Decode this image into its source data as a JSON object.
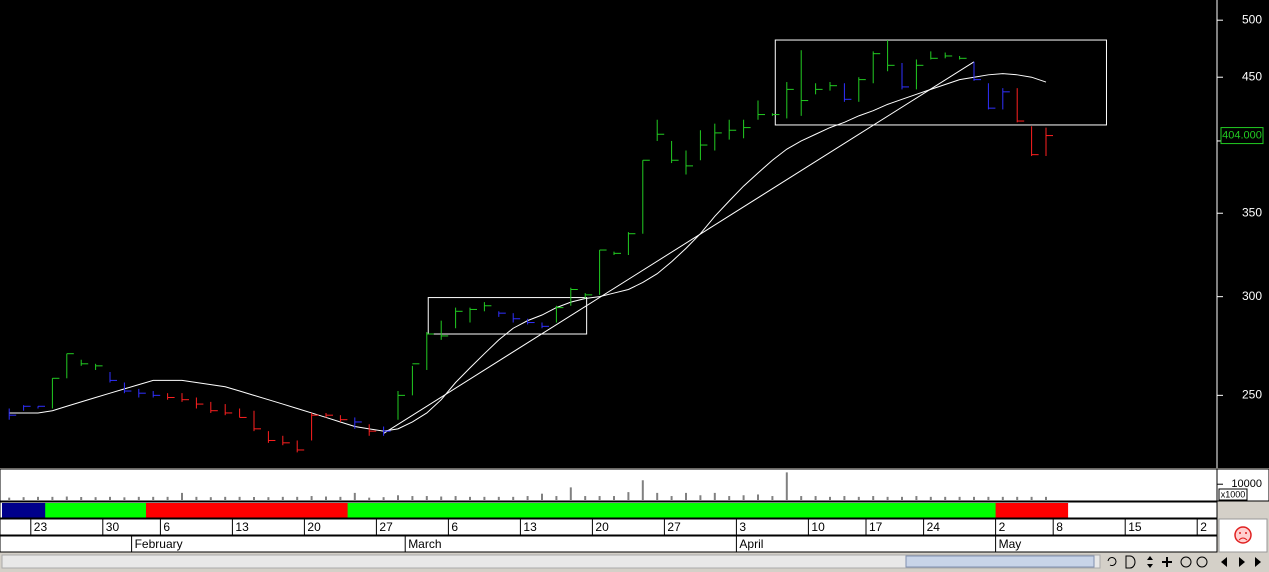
{
  "chart_data": {
    "type": "ohlc",
    "categories": [
      null,
      null,
      "23",
      null,
      null,
      null,
      null,
      "30",
      null,
      null,
      null,
      "6",
      null,
      null,
      null,
      null,
      "13",
      null,
      null,
      null,
      null,
      "20",
      null,
      null,
      null,
      null,
      "27",
      null,
      null,
      null,
      null,
      "6",
      null,
      null,
      null,
      null,
      "13",
      null,
      null,
      null,
      null,
      "20",
      null,
      null,
      null,
      null,
      "27",
      null,
      null,
      null,
      null,
      "3",
      null,
      null,
      null,
      null,
      "10",
      null,
      null,
      null,
      "17",
      null,
      null,
      null,
      "24",
      null,
      null,
      null,
      null,
      "2",
      null,
      null,
      null,
      "8",
      null,
      null,
      null,
      null,
      "15",
      null,
      null,
      null,
      null,
      "2"
    ],
    "months": [
      null,
      null,
      null,
      null,
      null,
      null,
      null,
      null,
      null,
      "February",
      null,
      null,
      null,
      null,
      null,
      null,
      null,
      null,
      null,
      null,
      null,
      null,
      null,
      null,
      null,
      null,
      null,
      null,
      "March",
      null,
      null,
      null,
      null,
      null,
      null,
      null,
      null,
      null,
      null,
      null,
      null,
      null,
      null,
      null,
      null,
      null,
      null,
      null,
      null,
      null,
      null,
      "April",
      null,
      null,
      null,
      null,
      null,
      null,
      null,
      null,
      null,
      null,
      null,
      null,
      null,
      null,
      null,
      null,
      null,
      "May",
      null,
      null,
      null,
      null,
      null,
      null,
      null,
      null,
      null,
      null,
      null,
      null,
      null,
      null
    ],
    "high": [
      244,
      245.5,
      245,
      258,
      270,
      267,
      265,
      261,
      256,
      253,
      252,
      251,
      251,
      249,
      247,
      246,
      244,
      243,
      234,
      232,
      230,
      242,
      242,
      241,
      240,
      237,
      236,
      252,
      264,
      281,
      287,
      294,
      294,
      297,
      292,
      291,
      288,
      286,
      295,
      305,
      302,
      327,
      326,
      338,
      386,
      416,
      400,
      393,
      408,
      413,
      416,
      416,
      431,
      421,
      446,
      473,
      445,
      446,
      445,
      450,
      472,
      482,
      462,
      465,
      472,
      471,
      468,
      463,
      445,
      441,
      441,
      411,
      410,
      null,
      null,
      null,
      null,
      null,
      null,
      null,
      null,
      null,
      null,
      null
    ],
    "low": [
      239,
      243,
      244,
      244,
      258,
      264,
      262,
      256,
      251,
      249,
      249,
      248,
      247,
      244,
      242,
      241,
      240,
      234,
      229,
      228,
      225,
      230,
      240,
      238,
      235,
      232,
      232,
      239,
      250,
      262,
      277,
      283,
      286,
      292,
      289,
      286,
      285,
      283,
      286,
      295,
      299,
      301,
      324,
      324,
      337,
      400,
      384,
      376,
      386,
      393,
      401,
      402,
      416,
      419,
      417,
      419,
      436,
      439,
      430,
      430,
      445,
      455,
      440,
      440,
      465,
      466,
      465,
      447,
      424,
      424,
      414,
      389,
      389,
      null,
      null,
      null,
      null,
      null,
      null,
      null,
      null,
      null,
      null,
      null
    ],
    "close": [
      241,
      245,
      245,
      258,
      270,
      265,
      264,
      257,
      252,
      251,
      250,
      249,
      248,
      246,
      243,
      242,
      240,
      235,
      230,
      229,
      226,
      241,
      241,
      239,
      238,
      234,
      234,
      250,
      265,
      280,
      279,
      292,
      293,
      295,
      291,
      288,
      286,
      284,
      294,
      304,
      301,
      327,
      325,
      337,
      386,
      405,
      386,
      382,
      397,
      406,
      408,
      410,
      420,
      420,
      440,
      431,
      440,
      443,
      432,
      448,
      470,
      460,
      442,
      460,
      466,
      468,
      466,
      448,
      425,
      438,
      415,
      390,
      404,
      null,
      null,
      null,
      null,
      null,
      null,
      null,
      null,
      null,
      null,
      null
    ],
    "bar_colors": [
      "#3030ff",
      "#3030ff",
      "#3030ff",
      "#22cc22",
      "#22cc22",
      "#22cc22",
      "#22cc22",
      "#3030ff",
      "#3030ff",
      "#3030ff",
      "#3030ff",
      "#ff2020",
      "#ff2020",
      "#ff2020",
      "#ff2020",
      "#ff2020",
      "#ff2020",
      "#ff2020",
      "#ff2020",
      "#ff2020",
      "#ff2020",
      "#ff2020",
      "#ff2020",
      "#ff2020",
      "#3030ff",
      "#ff2020",
      "#3030ff",
      "#22cc22",
      "#22cc22",
      "#22cc22",
      "#22cc22",
      "#22cc22",
      "#22cc22",
      "#22cc22",
      "#3030ff",
      "#3030ff",
      "#3030ff",
      "#3030ff",
      "#22cc22",
      "#22cc22",
      "#22cc22",
      "#22cc22",
      "#22cc22",
      "#22cc22",
      "#22cc22",
      "#22cc22",
      "#22cc22",
      "#22cc22",
      "#22cc22",
      "#22cc22",
      "#22cc22",
      "#22cc22",
      "#22cc22",
      "#22cc22",
      "#22cc22",
      "#22cc22",
      "#22cc22",
      "#22cc22",
      "#3030ff",
      "#22cc22",
      "#22cc22",
      "#22cc22",
      "#3030ff",
      "#22cc22",
      "#22cc22",
      "#22cc22",
      "#22cc22",
      "#3030ff",
      "#3030ff",
      "#3030ff",
      "#ff2020",
      "#ff2020",
      "#ff2020",
      null,
      null,
      null,
      null,
      null,
      null,
      null,
      null,
      null,
      null,
      null
    ],
    "moving_average": [
      242,
      242,
      242,
      243,
      245,
      247,
      249,
      251,
      253,
      255,
      257,
      257,
      257,
      256,
      255,
      254,
      252,
      250,
      248,
      246,
      244,
      242,
      240,
      238,
      236,
      235,
      234,
      235,
      238,
      242,
      248,
      256,
      263,
      270,
      277,
      283,
      287,
      290,
      294,
      297,
      299,
      300,
      302,
      304,
      308,
      313,
      320,
      328,
      337,
      348,
      358,
      368,
      377,
      386,
      394,
      400,
      405,
      410,
      414,
      419,
      423,
      428,
      432,
      436,
      440,
      444,
      448,
      450,
      452,
      453,
      452,
      450,
      446,
      null,
      null,
      null,
      null,
      null,
      null,
      null,
      null,
      null,
      null,
      null
    ],
    "line_color": "#ffffff",
    "trendline": {
      "x": [
        26,
        67
      ],
      "y": [
        233,
        463
      ]
    },
    "boxes": [
      {
        "x": [
          29.1,
          40.1
        ],
        "y": [
          280,
          299.5
        ]
      },
      {
        "x": [
          53.2,
          76.2
        ],
        "y": [
          412,
          482
        ]
      }
    ],
    "log_scale": true,
    "ylim": [
      219,
      519
    ],
    "yticks": [
      250,
      300,
      350,
      400,
      450,
      500
    ],
    "last_label": "404.000",
    "volume": [
      1500,
      1800,
      2000,
      2000,
      2200,
      1900,
      1800,
      2000,
      1700,
      2000,
      2000,
      2000,
      4500,
      2000,
      1800,
      2000,
      2000,
      1900,
      1800,
      2000,
      2000,
      2500,
      2200,
      2000,
      4500,
      1500,
      1800,
      3000,
      2500,
      2500,
      2200,
      2500,
      2000,
      2000,
      2000,
      2000,
      2500,
      4000,
      2500,
      8000,
      2500,
      2500,
      2500,
      5000,
      12500,
      4500,
      2500,
      4500,
      3000,
      4500,
      2500,
      3000,
      3500,
      2500,
      17500,
      2500,
      2500,
      2000,
      2500,
      2000,
      2500,
      2000,
      2000,
      2500,
      2000,
      2000,
      2000,
      2000,
      2000,
      2000,
      2000,
      2000,
      2000,
      null,
      null,
      null,
      null,
      null,
      null,
      null,
      null,
      null,
      null,
      null
    ],
    "volume_color": "#808080",
    "volume_ylim": [
      0,
      19000
    ],
    "volume_yticks": [
      10000
    ],
    "volume_unit": "x1000",
    "strip_colors": [
      "#00008b",
      "#00008b",
      "#00008b",
      "#00ff00",
      "#00ff00",
      "#00ff00",
      "#00ff00",
      "#00ff00",
      "#00ff00",
      "#00ff00",
      "#ff0000",
      "#ff0000",
      "#ff0000",
      "#ff0000",
      "#ff0000",
      "#ff0000",
      "#ff0000",
      "#ff0000",
      "#ff0000",
      "#ff0000",
      "#ff0000",
      "#ff0000",
      "#ff0000",
      "#ff0000",
      "#00ff00",
      "#00ff00",
      "#00ff00",
      "#00ff00",
      "#00ff00",
      "#00ff00",
      "#00ff00",
      "#00ff00",
      "#00ff00",
      "#00ff00",
      "#00ff00",
      "#00ff00",
      "#00ff00",
      "#00ff00",
      "#00ff00",
      "#00ff00",
      "#00ff00",
      "#00ff00",
      "#00ff00",
      "#00ff00",
      "#00ff00",
      "#00ff00",
      "#00ff00",
      "#00ff00",
      "#00ff00",
      "#00ff00",
      "#00ff00",
      "#00ff00",
      "#00ff00",
      "#00ff00",
      "#00ff00",
      "#00ff00",
      "#00ff00",
      "#00ff00",
      "#00ff00",
      "#00ff00",
      "#00ff00",
      "#00ff00",
      "#00ff00",
      "#00ff00",
      "#00ff00",
      "#00ff00",
      "#00ff00",
      "#00ff00",
      "#00ff00",
      "#ff0000",
      "#ff0000",
      "#ff0000",
      "#ff0000",
      "#ff0000",
      null,
      null,
      null,
      null,
      null,
      null,
      null,
      null,
      null,
      null
    ]
  }
}
